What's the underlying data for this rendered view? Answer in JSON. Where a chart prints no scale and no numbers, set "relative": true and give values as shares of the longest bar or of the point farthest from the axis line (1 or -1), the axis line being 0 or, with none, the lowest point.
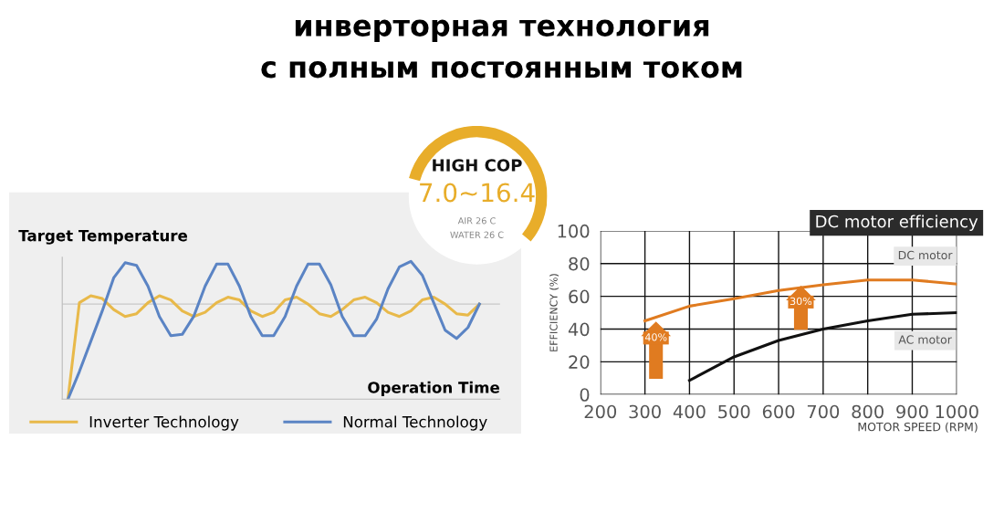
{
  "chart_data": [
    {
      "type": "line",
      "title": "инверторная технология\nс полным постоянным током",
      "relative": true,
      "ylabel": "Target Temperature",
      "xlabel": "Operation Time",
      "legend": "bottom",
      "categories": [
        null,
        null,
        null,
        null,
        null,
        null,
        null,
        null,
        null,
        null,
        null,
        null,
        null,
        null,
        null,
        null,
        null,
        null,
        null,
        null,
        null,
        null,
        null,
        null,
        null,
        null,
        null,
        null,
        null,
        null,
        null,
        null,
        null,
        null,
        null,
        null,
        null
      ],
      "series": [
        {
          "name": "Inverter Technology",
          "color": "#e8b94a",
          "values": [
            0,
            0.7,
            0.75,
            0.73,
            0.65,
            0.6,
            0.62,
            0.7,
            0.75,
            0.72,
            0.64,
            0.6,
            0.63,
            0.7,
            0.74,
            0.72,
            0.64,
            0.6,
            0.63,
            0.72,
            0.74,
            0.69,
            0.62,
            0.6,
            0.65,
            0.72,
            0.74,
            0.7,
            0.63,
            0.6,
            0.64,
            0.72,
            0.74,
            0.69,
            0.62,
            0.61,
            0.69
          ]
        },
        {
          "name": "Normal Technology",
          "color": "#5b84c4",
          "values": [
            0,
            0.2,
            0.42,
            0.64,
            0.88,
            0.99,
            0.97,
            0.82,
            0.6,
            0.46,
            0.47,
            0.6,
            0.82,
            0.98,
            0.98,
            0.82,
            0.6,
            0.46,
            0.46,
            0.6,
            0.82,
            0.98,
            0.98,
            0.83,
            0.6,
            0.46,
            0.46,
            0.58,
            0.8,
            0.96,
            1.0,
            0.9,
            0.7,
            0.5,
            0.44,
            0.52,
            0.69
          ]
        }
      ],
      "ref_lines": [
        {
          "axis": "y",
          "value": 0.69,
          "color": "#c8c8c8"
        }
      ]
    },
    {
      "type": "other",
      "title": "HIGH COP",
      "annotations": [
        "7.0~16.4",
        "AIR 26 C",
        "WATER 26 C"
      ]
    },
    {
      "type": "line",
      "title": "DC motor efficiency",
      "xlabel": "MOTOR SPEED (RPM)",
      "ylabel": "EFFICIENCY (%)",
      "grid": true,
      "legend": false,
      "xlim": [
        200,
        1000
      ],
      "xticks": [
        200,
        300,
        400,
        500,
        600,
        700,
        800,
        900,
        1000
      ],
      "ylim": [
        0,
        100
      ],
      "yticks": [
        0,
        20,
        40,
        60,
        80,
        100
      ],
      "series": [
        {
          "name": "DC motor",
          "color": "#e07b20",
          "x": [
            300,
            400,
            500,
            600,
            700,
            800,
            900,
            1000
          ],
          "values": [
            45,
            54,
            58.5,
            63.5,
            67,
            70,
            70,
            67.5
          ]
        },
        {
          "name": "AC motor",
          "color": "#111111",
          "x": [
            400,
            500,
            600,
            700,
            800,
            900,
            1000
          ],
          "values": [
            8.6,
            23,
            33,
            40,
            45,
            49,
            50
          ]
        }
      ],
      "annotations": [
        "40%",
        "30%"
      ]
    }
  ]
}
